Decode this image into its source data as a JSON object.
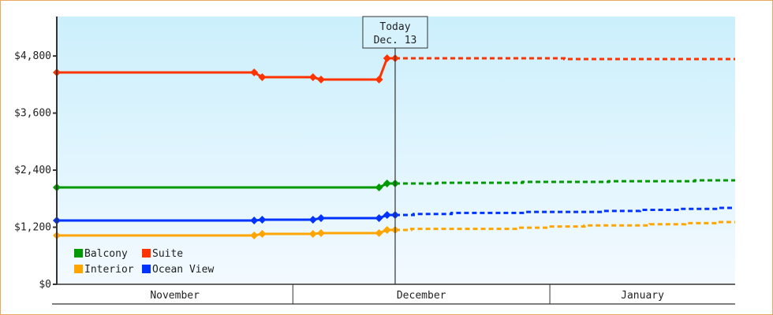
{
  "chart_data": {
    "type": "line",
    "title": "",
    "xlabel": "",
    "ylabel": "",
    "ylim": [
      0,
      5630
    ],
    "y_ticks": [
      0,
      1200,
      2400,
      3600,
      4800
    ],
    "y_tick_labels": [
      "$0",
      "$1,200",
      "$2,400",
      "$3,600",
      "$4,800"
    ],
    "x_unit": "days since Nov 1",
    "xlim": [
      0,
      84.2
    ],
    "months": [
      {
        "label": "November",
        "start": 0,
        "end": 29.3
      },
      {
        "label": "December",
        "start": 29.3,
        "end": 61.2
      },
      {
        "label": "January",
        "start": 61.2,
        "end": 84.2
      }
    ],
    "today": {
      "line1": "Today",
      "line2": "Dec. 13",
      "x": 42
    },
    "legend": {
      "placement": "bottom-left"
    },
    "series": [
      {
        "name": "Balcony",
        "color": "#009900",
        "points": [
          [
            0,
            2036
          ],
          [
            40,
            2036
          ],
          [
            41,
            2119
          ],
          [
            42,
            2119
          ]
        ],
        "forecast": [
          [
            42,
            2119
          ],
          [
            47.2,
            2119
          ],
          [
            47.2,
            2135
          ],
          [
            57.8,
            2135
          ],
          [
            57.8,
            2152
          ],
          [
            68.5,
            2152
          ],
          [
            68.5,
            2168
          ],
          [
            79.2,
            2168
          ],
          [
            79.2,
            2185
          ],
          [
            84.2,
            2185
          ]
        ]
      },
      {
        "name": "Suite",
        "color": "#ff3300",
        "points": [
          [
            0,
            4454
          ],
          [
            24.5,
            4454
          ],
          [
            25.5,
            4354
          ],
          [
            31.8,
            4354
          ],
          [
            32.8,
            4305
          ],
          [
            40,
            4305
          ],
          [
            41,
            4752
          ],
          [
            42,
            4752
          ]
        ],
        "forecast": [
          [
            42,
            4752
          ],
          [
            63,
            4752
          ],
          [
            63,
            4735
          ],
          [
            84.2,
            4735
          ]
        ]
      },
      {
        "name": "Interior",
        "color": "#ffa500",
        "points": [
          [
            0,
            1026
          ],
          [
            24.5,
            1026
          ],
          [
            25.5,
            1060
          ],
          [
            31.8,
            1060
          ],
          [
            32.8,
            1076
          ],
          [
            40,
            1076
          ],
          [
            41,
            1142
          ],
          [
            42,
            1142
          ]
        ],
        "forecast": [
          [
            42,
            1142
          ],
          [
            44,
            1142
          ],
          [
            44,
            1166
          ],
          [
            57,
            1166
          ],
          [
            57,
            1190
          ],
          [
            61,
            1190
          ],
          [
            61,
            1214
          ],
          [
            65.5,
            1214
          ],
          [
            65.5,
            1238
          ],
          [
            73.6,
            1238
          ],
          [
            73.6,
            1262
          ],
          [
            78,
            1262
          ],
          [
            78,
            1285
          ],
          [
            82,
            1285
          ],
          [
            82,
            1308
          ],
          [
            84.2,
            1308
          ]
        ]
      },
      {
        "name": "Ocean View",
        "color": "#0033ff",
        "points": [
          [
            0,
            1341
          ],
          [
            24.5,
            1341
          ],
          [
            25.5,
            1358
          ],
          [
            31.8,
            1358
          ],
          [
            32.8,
            1391
          ],
          [
            40,
            1391
          ],
          [
            41,
            1457
          ],
          [
            42,
            1457
          ]
        ],
        "forecast": [
          [
            42,
            1457
          ],
          [
            44.3,
            1457
          ],
          [
            44.3,
            1478
          ],
          [
            49,
            1478
          ],
          [
            49,
            1500
          ],
          [
            58,
            1500
          ],
          [
            58,
            1521
          ],
          [
            67.7,
            1521
          ],
          [
            67.7,
            1542
          ],
          [
            72.4,
            1542
          ],
          [
            72.4,
            1564
          ],
          [
            77.3,
            1564
          ],
          [
            77.3,
            1585
          ],
          [
            82.2,
            1585
          ],
          [
            82.2,
            1606
          ],
          [
            84.2,
            1606
          ]
        ]
      }
    ]
  }
}
